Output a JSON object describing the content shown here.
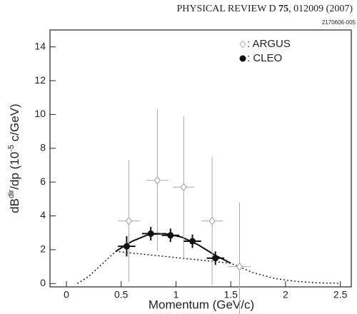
{
  "header": {
    "parts": [
      "PHYSICAL REVIEW D ",
      "75",
      ", 012009 (2007)"
    ]
  },
  "chart_data": {
    "type": "scatter",
    "figure_id": "2170606-005",
    "xlabel": "Momentum (GeV/c)",
    "ylabel": [
      "dB",
      "dir",
      "/dp (10",
      "-5",
      " c/GeV)"
    ],
    "xlim": [
      -0.15,
      2.6
    ],
    "ylim": [
      -0.2,
      15
    ],
    "xticks": [
      0,
      0.5,
      1,
      1.5,
      2,
      2.5
    ],
    "yticks": [
      0,
      2,
      4,
      6,
      8,
      10,
      12,
      14
    ],
    "series": [
      {
        "name": ": ARGUS",
        "color": "#aaaaaa",
        "marker": "diamond",
        "x": [
          0.57,
          0.83,
          1.07,
          1.33,
          1.58
        ],
        "values": [
          3.7,
          6.1,
          5.7,
          3.7,
          1.0
        ],
        "errors": [
          3.6,
          4.2,
          4.2,
          3.8,
          3.8
        ],
        "xerr": [
          0.1,
          0.1,
          0.1,
          0.1,
          0.1
        ]
      },
      {
        "name": ": CLEO",
        "color": "#111111",
        "marker": "circle",
        "x": [
          0.55,
          0.77,
          0.95,
          1.15,
          1.36
        ],
        "values": [
          2.2,
          2.95,
          2.85,
          2.5,
          1.5
        ],
        "errors": [
          0.6,
          0.4,
          0.4,
          0.4,
          0.4
        ],
        "xerr": [
          0.08,
          0.08,
          0.08,
          0.08,
          0.08
        ]
      }
    ],
    "fit_solid": {
      "x": [
        0.45,
        0.6,
        0.75,
        0.9,
        1.05,
        1.2,
        1.35,
        1.5
      ],
      "values": [
        1.9,
        2.5,
        2.9,
        2.95,
        2.75,
        2.3,
        1.7,
        1.2
      ]
    },
    "fit_dotted": {
      "x": [
        0.1,
        0.2,
        0.3,
        0.45,
        1.5,
        1.7,
        1.9,
        2.1,
        2.3,
        2.5
      ],
      "values": [
        0,
        0.4,
        1.0,
        1.9,
        1.2,
        0.65,
        0.3,
        0.12,
        0.04,
        0.01
      ]
    }
  }
}
